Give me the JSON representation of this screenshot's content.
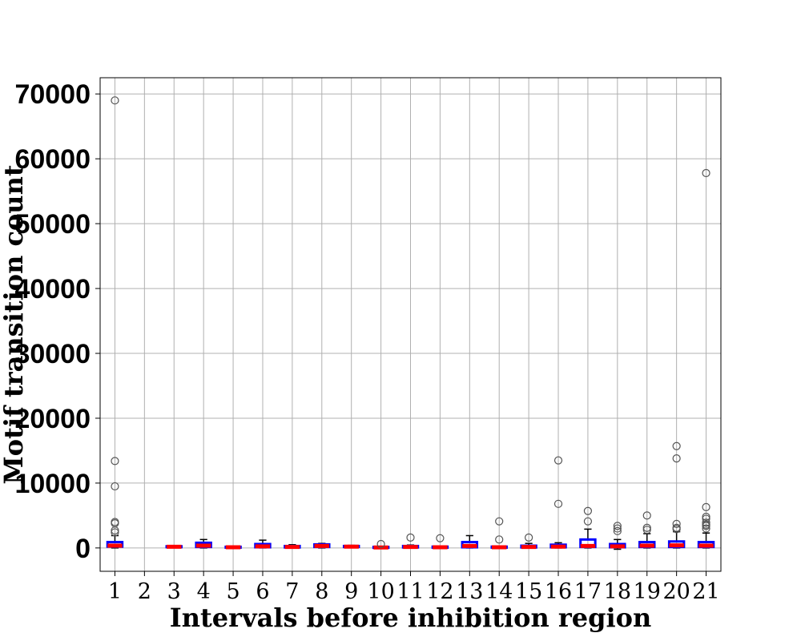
{
  "chart_data": {
    "type": "box",
    "xlabel": "Intervals before inhibition region",
    "ylabel": "Motif transition count",
    "ylim": [
      -3600,
      72500
    ],
    "yticks": [
      0,
      10000,
      20000,
      30000,
      40000,
      50000,
      60000,
      70000
    ],
    "grid": true,
    "colors": {
      "box": "#0000ff",
      "median": "#ff0000",
      "whisker": "#000000",
      "flier": "#555555",
      "grid": "#b0b0b0"
    },
    "categories": [
      "1",
      "2",
      "3",
      "4",
      "5",
      "6",
      "7",
      "8",
      "9",
      "10",
      "11",
      "12",
      "13",
      "14",
      "15",
      "16",
      "17",
      "18",
      "19",
      "20",
      "21"
    ],
    "boxes": [
      {
        "label": "1",
        "q1": 200,
        "median": 350,
        "q3": 900,
        "whislo": 0,
        "whishi": 1900,
        "fliers": [
          2400,
          2700,
          3800,
          4000,
          9500,
          13400,
          69000
        ]
      },
      {
        "label": "2",
        "empty": true
      },
      {
        "label": "3",
        "q1": 120,
        "median": 180,
        "q3": 260,
        "whislo": 80,
        "whishi": 320,
        "fliers": []
      },
      {
        "label": "4",
        "q1": 150,
        "median": 350,
        "q3": 800,
        "whislo": 0,
        "whishi": 1300,
        "fliers": []
      },
      {
        "label": "5",
        "q1": 50,
        "median": 100,
        "q3": 180,
        "whislo": 0,
        "whishi": 250,
        "fliers": []
      },
      {
        "label": "6",
        "q1": 100,
        "median": 250,
        "q3": 600,
        "whislo": 0,
        "whishi": 1200,
        "fliers": []
      },
      {
        "label": "7",
        "q1": 80,
        "median": 150,
        "q3": 300,
        "whislo": 0,
        "whishi": 500,
        "fliers": []
      },
      {
        "label": "8",
        "q1": 150,
        "median": 300,
        "q3": 550,
        "whislo": 0,
        "whishi": 700,
        "fliers": []
      },
      {
        "label": "9",
        "q1": 150,
        "median": 200,
        "q3": 300,
        "whislo": 100,
        "whishi": 400,
        "fliers": []
      },
      {
        "label": "10",
        "q1": 50,
        "median": 80,
        "q3": 150,
        "whislo": 0,
        "whishi": 250,
        "fliers": [
          600
        ]
      },
      {
        "label": "11",
        "q1": 80,
        "median": 150,
        "q3": 300,
        "whislo": 0,
        "whishi": 450,
        "fliers": [
          1600
        ]
      },
      {
        "label": "12",
        "q1": 50,
        "median": 100,
        "q3": 200,
        "whislo": 0,
        "whishi": 300,
        "fliers": [
          1500
        ]
      },
      {
        "label": "13",
        "q1": 100,
        "median": 300,
        "q3": 900,
        "whislo": 0,
        "whishi": 1900,
        "fliers": []
      },
      {
        "label": "14",
        "q1": 50,
        "median": 100,
        "q3": 200,
        "whislo": 0,
        "whishi": 300,
        "fliers": [
          1300,
          4100
        ]
      },
      {
        "label": "15",
        "q1": 80,
        "median": 150,
        "q3": 350,
        "whislo": 0,
        "whishi": 700,
        "fliers": [
          1600
        ]
      },
      {
        "label": "16",
        "q1": 100,
        "median": 200,
        "q3": 500,
        "whislo": 0,
        "whishi": 800,
        "fliers": [
          6800,
          13500
        ]
      },
      {
        "label": "17",
        "q1": 150,
        "median": 300,
        "q3": 1300,
        "whislo": 0,
        "whishi": 2900,
        "fliers": [
          4100,
          5700
        ]
      },
      {
        "label": "18",
        "q1": 100,
        "median": 250,
        "q3": 600,
        "whislo": -200,
        "whishi": 1300,
        "fliers": [
          2600,
          3000,
          3400
        ]
      },
      {
        "label": "19",
        "q1": 150,
        "median": 350,
        "q3": 900,
        "whislo": 0,
        "whishi": 2200,
        "fliers": [
          2800,
          3100,
          5000
        ]
      },
      {
        "label": "20",
        "q1": 150,
        "median": 400,
        "q3": 1000,
        "whislo": 0,
        "whishi": 2500,
        "fliers": [
          2900,
          3100,
          3700,
          13800,
          15700
        ]
      },
      {
        "label": "21",
        "q1": 150,
        "median": 350,
        "q3": 900,
        "whislo": 0,
        "whishi": 2300,
        "fliers": [
          3000,
          3400,
          3600,
          3900,
          4500,
          4800,
          6300,
          57800
        ]
      }
    ]
  }
}
